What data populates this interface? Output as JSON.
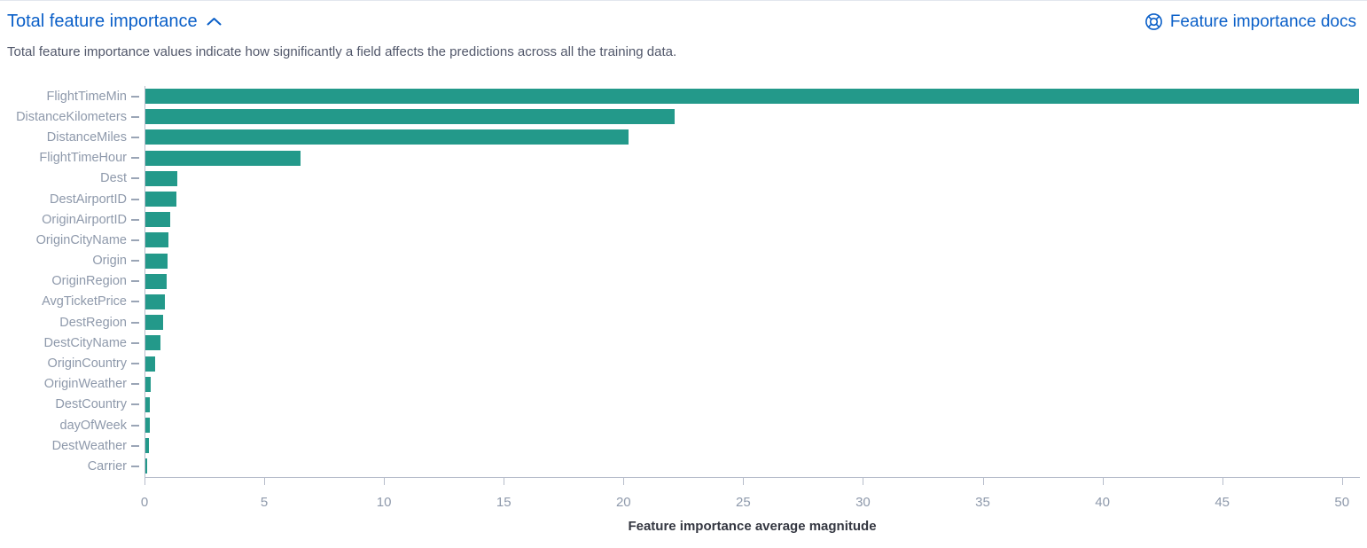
{
  "header": {
    "title": "Total feature importance",
    "collapse_icon": "chevron-up-icon",
    "docs_link_label": "Feature importance docs",
    "docs_icon": "lifering-docs-icon"
  },
  "description": "Total feature importance values indicate how significantly a field affects the predictions across all the training data.",
  "colors": {
    "bar": "#23998a",
    "link": "#0a5fc8",
    "axis_text": "#8e99ab",
    "axis_line": "#b7bdcb",
    "body_text": "#51576a",
    "axis_title_text": "#343741"
  },
  "chart_data": {
    "type": "bar",
    "orientation": "horizontal",
    "title": "Total feature importance",
    "xlabel": "Feature importance average magnitude",
    "ylabel": "",
    "grid": false,
    "legend_position": "none",
    "bar_color": "#23998a",
    "categories": [
      "FlightTimeMin",
      "DistanceKilometers",
      "DistanceMiles",
      "FlightTimeHour",
      "Dest",
      "DestAirportID",
      "OriginAirportID",
      "OriginCityName",
      "Origin",
      "OriginRegion",
      "AvgTicketPrice",
      "DestRegion",
      "DestCityName",
      "OriginCountry",
      "OriginWeather",
      "DestCountry",
      "dayOfWeek",
      "DestWeather",
      "Carrier"
    ],
    "values": [
      50.7,
      22.1,
      20.2,
      6.5,
      1.35,
      1.3,
      1.05,
      0.95,
      0.93,
      0.88,
      0.82,
      0.74,
      0.63,
      0.4,
      0.22,
      0.2,
      0.18,
      0.15,
      0.07
    ],
    "x_ticks": [
      0,
      5,
      10,
      15,
      20,
      25,
      30,
      35,
      40,
      45,
      50
    ],
    "xlim": [
      0,
      50.75
    ]
  }
}
